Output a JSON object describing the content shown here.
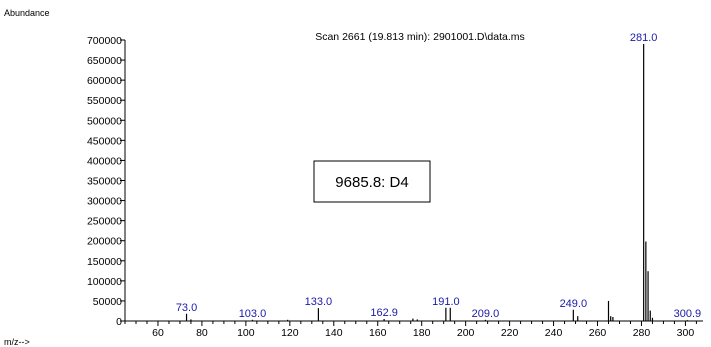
{
  "chart_data": {
    "type": "bar",
    "title": "Scan 2661 (19.813 min): 2901001.D\\data.ms",
    "ylabel": "Abundance",
    "xlabel": "m/z-->",
    "xlim": [
      45,
      308
    ],
    "ylim": [
      0,
      700000
    ],
    "x_ticks": [
      60,
      80,
      100,
      120,
      140,
      160,
      180,
      200,
      220,
      240,
      260,
      280,
      300
    ],
    "y_ticks": [
      0,
      50000,
      100000,
      150000,
      200000,
      250000,
      300000,
      350000,
      400000,
      450000,
      500000,
      550000,
      600000,
      650000,
      700000
    ],
    "annotation": "9685.8: D4",
    "peaks": [
      {
        "x": 73.0,
        "y": 18000
      },
      {
        "x": 75.0,
        "y": 4000
      },
      {
        "x": 103.0,
        "y": 3000
      },
      {
        "x": 119.0,
        "y": 3000
      },
      {
        "x": 133.0,
        "y": 32000
      },
      {
        "x": 162.9,
        "y": 5000
      },
      {
        "x": 176.0,
        "y": 6000
      },
      {
        "x": 178.0,
        "y": 4000
      },
      {
        "x": 191.0,
        "y": 33000
      },
      {
        "x": 193.0,
        "y": 33000
      },
      {
        "x": 209.0,
        "y": 3000
      },
      {
        "x": 249.0,
        "y": 28000
      },
      {
        "x": 251.0,
        "y": 12000
      },
      {
        "x": 265.0,
        "y": 50000
      },
      {
        "x": 266.0,
        "y": 12000
      },
      {
        "x": 267.0,
        "y": 10000
      },
      {
        "x": 281.0,
        "y": 690000
      },
      {
        "x": 282.0,
        "y": 198000
      },
      {
        "x": 283.0,
        "y": 124000
      },
      {
        "x": 284.0,
        "y": 26000
      },
      {
        "x": 285.0,
        "y": 8000
      },
      {
        "x": 300.9,
        "y": 2000
      }
    ],
    "peak_labels": [
      {
        "x": 73.0,
        "y": 18000,
        "text": "73.0"
      },
      {
        "x": 103.0,
        "y": 3000,
        "text": "103.0"
      },
      {
        "x": 133.0,
        "y": 32000,
        "text": "133.0"
      },
      {
        "x": 162.9,
        "y": 5000,
        "text": "162.9"
      },
      {
        "x": 191.0,
        "y": 33000,
        "text": "191.0"
      },
      {
        "x": 209.0,
        "y": 3000,
        "text": "209.0"
      },
      {
        "x": 249.0,
        "y": 28000,
        "text": "249.0"
      },
      {
        "x": 281.0,
        "y": 690000,
        "text": "281.0"
      },
      {
        "x": 300.9,
        "y": 2000,
        "text": "300.9"
      }
    ]
  }
}
